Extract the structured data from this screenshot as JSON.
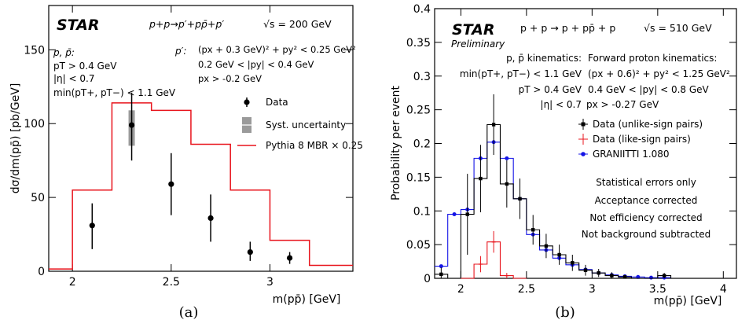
{
  "chart_data": [
    {
      "type": "line",
      "panel_label": "(a)",
      "ylabel": "dσ/dm(pp̄) [pb/GeV]",
      "xlabel": "m(pp̄) [GeV]",
      "xlim": [
        1.88,
        3.42
      ],
      "ylim": [
        0,
        180
      ],
      "xticks": [
        2,
        2.5,
        3
      ],
      "xtick_labels": [
        "2",
        "2.5",
        "3"
      ],
      "yticks": [
        0,
        50,
        100,
        150
      ],
      "ytick_labels": [
        "0",
        "50",
        "100",
        "150"
      ],
      "star_label": "STAR",
      "process": "p+p→p′+pp̄+p′",
      "energy": "√s = 200 GeV",
      "cuts_left": [
        "p, p̄:",
        "pT > 0.4 GeV",
        "|η| < 0.7",
        "min(pT+, pT−) < 1.1 GeV"
      ],
      "cuts_right_title": "p′:",
      "cuts_right": [
        "(px + 0.3 GeV)² + py² < 0.25 GeV²",
        "0.2 GeV < |py| < 0.4 GeV",
        "px > -0.2 GeV"
      ],
      "legend": {
        "placement": "right",
        "entries": [
          "Data",
          "Syst. uncertainty",
          "Pythia 8 MBR × 0.25"
        ]
      },
      "data_points": [
        {
          "x": 2.1,
          "y": 31,
          "ylow": 15,
          "yhigh": 46
        },
        {
          "x": 2.3,
          "y": 99,
          "ylow": 75,
          "yhigh": 121,
          "syst_low": 85,
          "syst_high": 109
        },
        {
          "x": 2.5,
          "y": 59,
          "ylow": 38,
          "yhigh": 80
        },
        {
          "x": 2.7,
          "y": 36,
          "ylow": 20,
          "yhigh": 52
        },
        {
          "x": 2.9,
          "y": 13,
          "ylow": 7,
          "yhigh": 20
        },
        {
          "x": 3.1,
          "y": 9,
          "ylow": 5,
          "yhigh": 13
        }
      ],
      "pythia_hist": {
        "edges": [
          1.88,
          2.0,
          2.2,
          2.4,
          2.6,
          2.8,
          3.0,
          3.2,
          3.42
        ],
        "values": [
          1.5,
          55,
          114,
          109,
          86,
          55,
          21,
          4
        ]
      },
      "colors": {
        "data": "#000000",
        "pythia": "#e8141c",
        "syst": "#9a9a9a"
      }
    },
    {
      "type": "line",
      "panel_label": "(b)",
      "ylabel": "Probability per event",
      "xlabel": "m(pp̄) [GeV]",
      "xlim": [
        1.8,
        4.1
      ],
      "ylim": [
        0,
        0.4
      ],
      "xticks": [
        2,
        2.5,
        3,
        3.5,
        4
      ],
      "xtick_labels": [
        "2",
        "2.5",
        "3",
        "3.5",
        "4"
      ],
      "yticks": [
        0,
        0.05,
        0.1,
        0.15,
        0.2,
        0.25,
        0.3,
        0.35,
        0.4
      ],
      "ytick_labels": [
        "0",
        "0.05",
        "0.1",
        "0.15",
        "0.2",
        "0.25",
        "0.3",
        "0.35",
        "0.4"
      ],
      "star_label": "STAR",
      "preliminary": "Preliminary",
      "process": "p + p → p + pp̄ + p",
      "energy": "√s = 510 GeV",
      "cuts_left": [
        "p, p̄ kinematics:",
        "min(pT+, pT−) < 1.1 GeV",
        "pT > 0.4 GeV",
        "|η| < 0.7"
      ],
      "cuts_right": [
        "Forward proton kinematics:",
        "(px + 0.6)² + py² < 1.25 GeV²",
        "0.4 GeV < |py| < 0.8 GeV",
        "px > -0.27 GeV"
      ],
      "legend": {
        "placement": "right",
        "entries": [
          "Data (unlike-sign pairs)",
          "Data (like-sign pairs)",
          "GRANIITTI 1.080"
        ]
      },
      "notes": [
        "Statistical errors only",
        "Acceptance corrected",
        "Not efficiency corrected",
        "Not background subtracted"
      ],
      "bin_edges": [
        1.8,
        1.9,
        2.0,
        2.1,
        2.2,
        2.3,
        2.4,
        2.5,
        2.6,
        2.7,
        2.8,
        2.9,
        3.0,
        3.1,
        3.2,
        3.3,
        3.4,
        3.5,
        3.6,
        3.7,
        3.8,
        3.9,
        4.0,
        4.1
      ],
      "series": [
        {
          "name": "Data (unlike-sign pairs)",
          "color": "#000000",
          "values": [
            0.006,
            0.0,
            0.095,
            0.148,
            0.228,
            0.14,
            0.118,
            0.072,
            0.048,
            0.035,
            0.023,
            0.012,
            0.008,
            0.004,
            0.002,
            0.0,
            0.0,
            0.004,
            0.0,
            0.0,
            0.0,
            0.0,
            0.0
          ],
          "errors": [
            0.01,
            0.0,
            0.06,
            0.05,
            0.045,
            0.035,
            0.03,
            0.022,
            0.018,
            0.015,
            0.012,
            0.008,
            0.006,
            0.005,
            0.003,
            0.0,
            0.0,
            0.004,
            0.0,
            0.0,
            0.0,
            0.0,
            0.0
          ]
        },
        {
          "name": "Data (like-sign pairs)",
          "color": "#e8141c",
          "values": [
            0.0,
            0.0,
            0.0,
            0.021,
            0.054,
            0.004,
            0.0,
            0.0,
            0.0,
            0.0,
            0.0,
            0.0,
            0.0,
            0.0,
            0.0,
            0.0,
            0.0,
            0.0,
            0.0,
            0.0,
            0.0,
            0.0,
            0.0
          ],
          "errors": [
            0.0,
            0.0,
            0.0,
            0.012,
            0.016,
            0.004,
            0.0,
            0.0,
            0.0,
            0.0,
            0.0,
            0.0,
            0.0,
            0.0,
            0.0,
            0.0,
            0.0,
            0.0,
            0.0,
            0.0,
            0.0,
            0.0,
            0.0
          ]
        },
        {
          "name": "GRANIITTI 1.080",
          "color": "#1414e6",
          "values": [
            0.018,
            0.095,
            0.102,
            0.178,
            0.202,
            0.178,
            0.118,
            0.065,
            0.042,
            0.03,
            0.02,
            0.013,
            0.008,
            0.005,
            0.003,
            0.002,
            0.001,
            0.001,
            0.0,
            0.0,
            0.0,
            0.0,
            0.0
          ],
          "errors": [
            0.0,
            0.0,
            0.0,
            0.0,
            0.0,
            0.0,
            0.0,
            0.0,
            0.0,
            0.0,
            0.0,
            0.0,
            0.0,
            0.0,
            0.0,
            0.0,
            0.0,
            0.0,
            0.0,
            0.0,
            0.0,
            0.0,
            0.0
          ]
        }
      ]
    }
  ]
}
